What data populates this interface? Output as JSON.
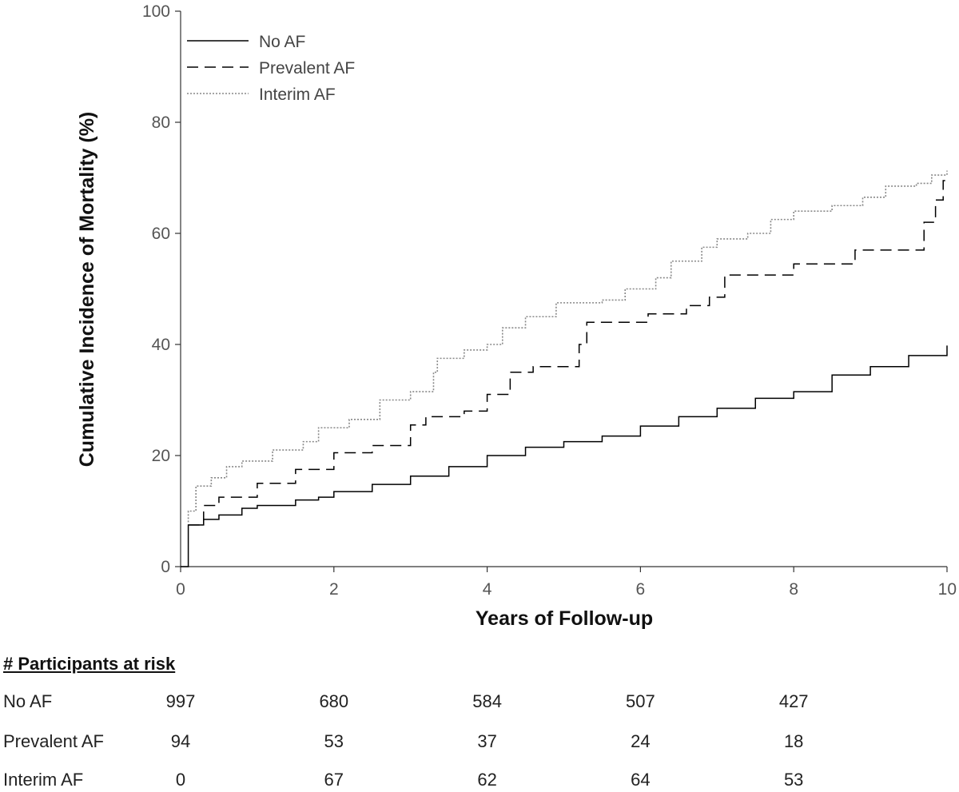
{
  "chart_data": {
    "type": "line",
    "ylabel": "Cumulative Incidence of Mortality (%)",
    "xlabel": "Years of Follow-up",
    "xlim": [
      0,
      10
    ],
    "ylim": [
      0,
      100
    ],
    "xticks": [
      0,
      2,
      4,
      6,
      8,
      10
    ],
    "yticks": [
      0,
      20,
      40,
      60,
      80,
      100
    ],
    "legend_position": "top-left",
    "step": true,
    "series": [
      {
        "name": "No AF",
        "style": "solid",
        "color": "#000000",
        "points": [
          [
            0,
            0
          ],
          [
            0.1,
            0
          ],
          [
            0.1,
            7.5
          ],
          [
            0.3,
            8.5
          ],
          [
            0.5,
            9.3
          ],
          [
            0.8,
            10.5
          ],
          [
            1.0,
            11.0
          ],
          [
            1.5,
            12.0
          ],
          [
            1.8,
            12.5
          ],
          [
            2.0,
            13.5
          ],
          [
            2.5,
            14.8
          ],
          [
            3.0,
            16.3
          ],
          [
            3.5,
            18.0
          ],
          [
            4.0,
            20.0
          ],
          [
            4.5,
            21.5
          ],
          [
            5.0,
            22.5
          ],
          [
            5.5,
            23.5
          ],
          [
            6.0,
            25.3
          ],
          [
            6.5,
            27.0
          ],
          [
            7.0,
            28.5
          ],
          [
            7.5,
            30.3
          ],
          [
            8.0,
            31.5
          ],
          [
            8.5,
            34.5
          ],
          [
            9.0,
            36.0
          ],
          [
            9.5,
            38.0
          ],
          [
            10.0,
            39.8
          ]
        ]
      },
      {
        "name": "Prevalent AF",
        "style": "dashed",
        "color": "#000000",
        "points": [
          [
            0.1,
            7.5
          ],
          [
            0.3,
            11.0
          ],
          [
            0.5,
            12.5
          ],
          [
            1.0,
            15.0
          ],
          [
            1.5,
            17.5
          ],
          [
            2.0,
            20.5
          ],
          [
            2.5,
            21.8
          ],
          [
            3.0,
            25.5
          ],
          [
            3.2,
            27.0
          ],
          [
            3.7,
            28.0
          ],
          [
            4.0,
            31.0
          ],
          [
            4.3,
            35.0
          ],
          [
            4.6,
            36.0
          ],
          [
            5.2,
            40.0
          ],
          [
            5.3,
            44.0
          ],
          [
            5.9,
            44.0
          ],
          [
            6.1,
            45.5
          ],
          [
            6.6,
            47.0
          ],
          [
            6.9,
            48.5
          ],
          [
            7.1,
            52.5
          ],
          [
            8.0,
            54.5
          ],
          [
            8.8,
            57.0
          ],
          [
            9.6,
            57.0
          ],
          [
            9.7,
            62.0
          ],
          [
            9.85,
            66.0
          ],
          [
            9.95,
            69.5
          ],
          [
            10.0,
            69.5
          ]
        ]
      },
      {
        "name": "Interim AF",
        "style": "dotted",
        "color": "#888888",
        "points": [
          [
            0.1,
            8.0
          ],
          [
            0.1,
            10.0
          ],
          [
            0.2,
            14.5
          ],
          [
            0.4,
            16.0
          ],
          [
            0.6,
            18.0
          ],
          [
            0.8,
            19.0
          ],
          [
            1.2,
            21.0
          ],
          [
            1.6,
            22.5
          ],
          [
            1.8,
            25.0
          ],
          [
            2.2,
            26.5
          ],
          [
            2.6,
            30.0
          ],
          [
            3.0,
            31.5
          ],
          [
            3.3,
            35.0
          ],
          [
            3.35,
            37.5
          ],
          [
            3.7,
            39.0
          ],
          [
            4.0,
            40.0
          ],
          [
            4.2,
            43.0
          ],
          [
            4.5,
            45.0
          ],
          [
            4.9,
            47.5
          ],
          [
            5.5,
            48.0
          ],
          [
            5.8,
            50.0
          ],
          [
            6.2,
            52.0
          ],
          [
            6.4,
            55.0
          ],
          [
            6.8,
            57.5
          ],
          [
            7.0,
            59.0
          ],
          [
            7.4,
            60.0
          ],
          [
            7.7,
            62.5
          ],
          [
            8.0,
            64.0
          ],
          [
            8.5,
            65.0
          ],
          [
            8.9,
            66.5
          ],
          [
            9.2,
            68.5
          ],
          [
            9.6,
            69.0
          ],
          [
            9.8,
            70.5
          ],
          [
            10.0,
            71.3
          ]
        ]
      }
    ]
  },
  "risk_table": {
    "heading": "# Participants at risk",
    "columns": [
      0,
      2,
      4,
      6,
      8
    ],
    "rows": [
      {
        "label": "No AF",
        "values": [
          "997",
          "680",
          "584",
          "507",
          "427"
        ]
      },
      {
        "label": "Prevalent AF",
        "values": [
          "94",
          "53",
          "37",
          "24",
          "18"
        ]
      },
      {
        "label": "Interim AF",
        "values": [
          "0",
          "67",
          "62",
          "64",
          "53"
        ]
      }
    ]
  }
}
